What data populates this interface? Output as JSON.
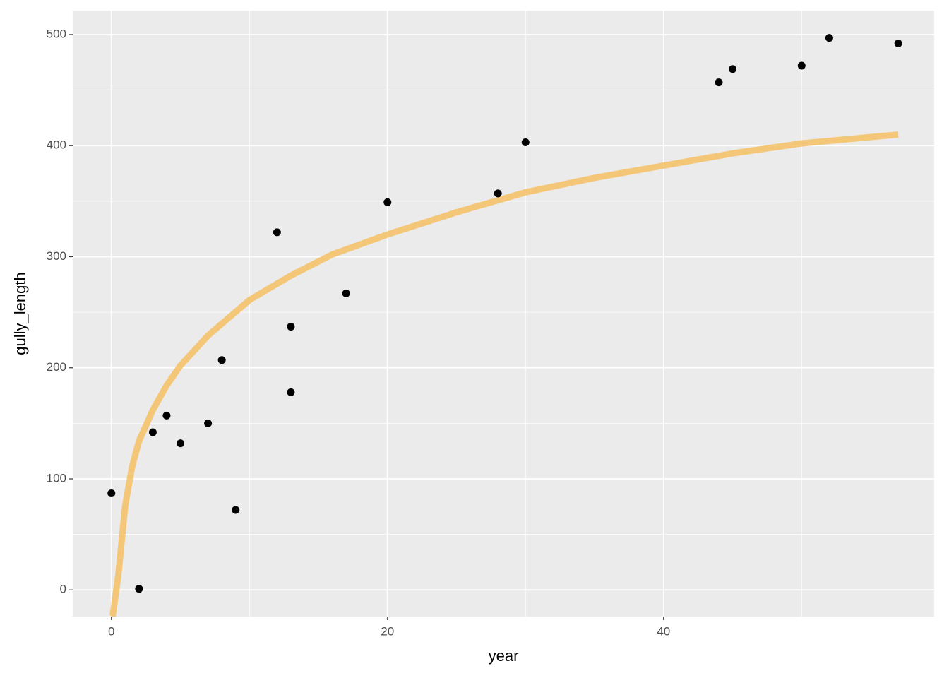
{
  "chart_data": {
    "type": "scatter",
    "xlabel": "year",
    "ylabel": "gully_length",
    "points": {
      "color": "#000000",
      "x": [
        0,
        2,
        3,
        4,
        5,
        7,
        8,
        9,
        12,
        13,
        13,
        17,
        20,
        28,
        30,
        44,
        45,
        50,
        52,
        57
      ],
      "values": [
        87,
        1,
        142,
        157,
        132,
        150,
        207,
        72,
        322,
        237,
        178,
        267,
        349,
        357,
        403,
        457,
        469,
        472,
        497,
        492
      ]
    },
    "curve": {
      "color": "#f5c26b",
      "x": [
        0,
        0.1,
        0.5,
        1,
        1.5,
        2,
        3,
        4,
        5,
        7,
        10,
        13,
        16,
        20,
        25,
        30,
        35,
        40,
        45,
        50,
        57
      ],
      "values": [
        -24,
        -23,
        13,
        76,
        111,
        134,
        162,
        184,
        202,
        229,
        261,
        283,
        302,
        320,
        340,
        358,
        371,
        382,
        393,
        402,
        410
      ]
    },
    "xlim": [
      -2.8,
      59.6
    ],
    "ylim": [
      -24,
      521.6
    ],
    "xticks": [
      0,
      20,
      40
    ],
    "yticks": [
      0,
      100,
      200,
      300,
      400,
      500
    ],
    "xminor": [
      10,
      30,
      50
    ],
    "yminor": [
      50,
      150,
      250,
      350,
      450
    ],
    "grid": true
  }
}
